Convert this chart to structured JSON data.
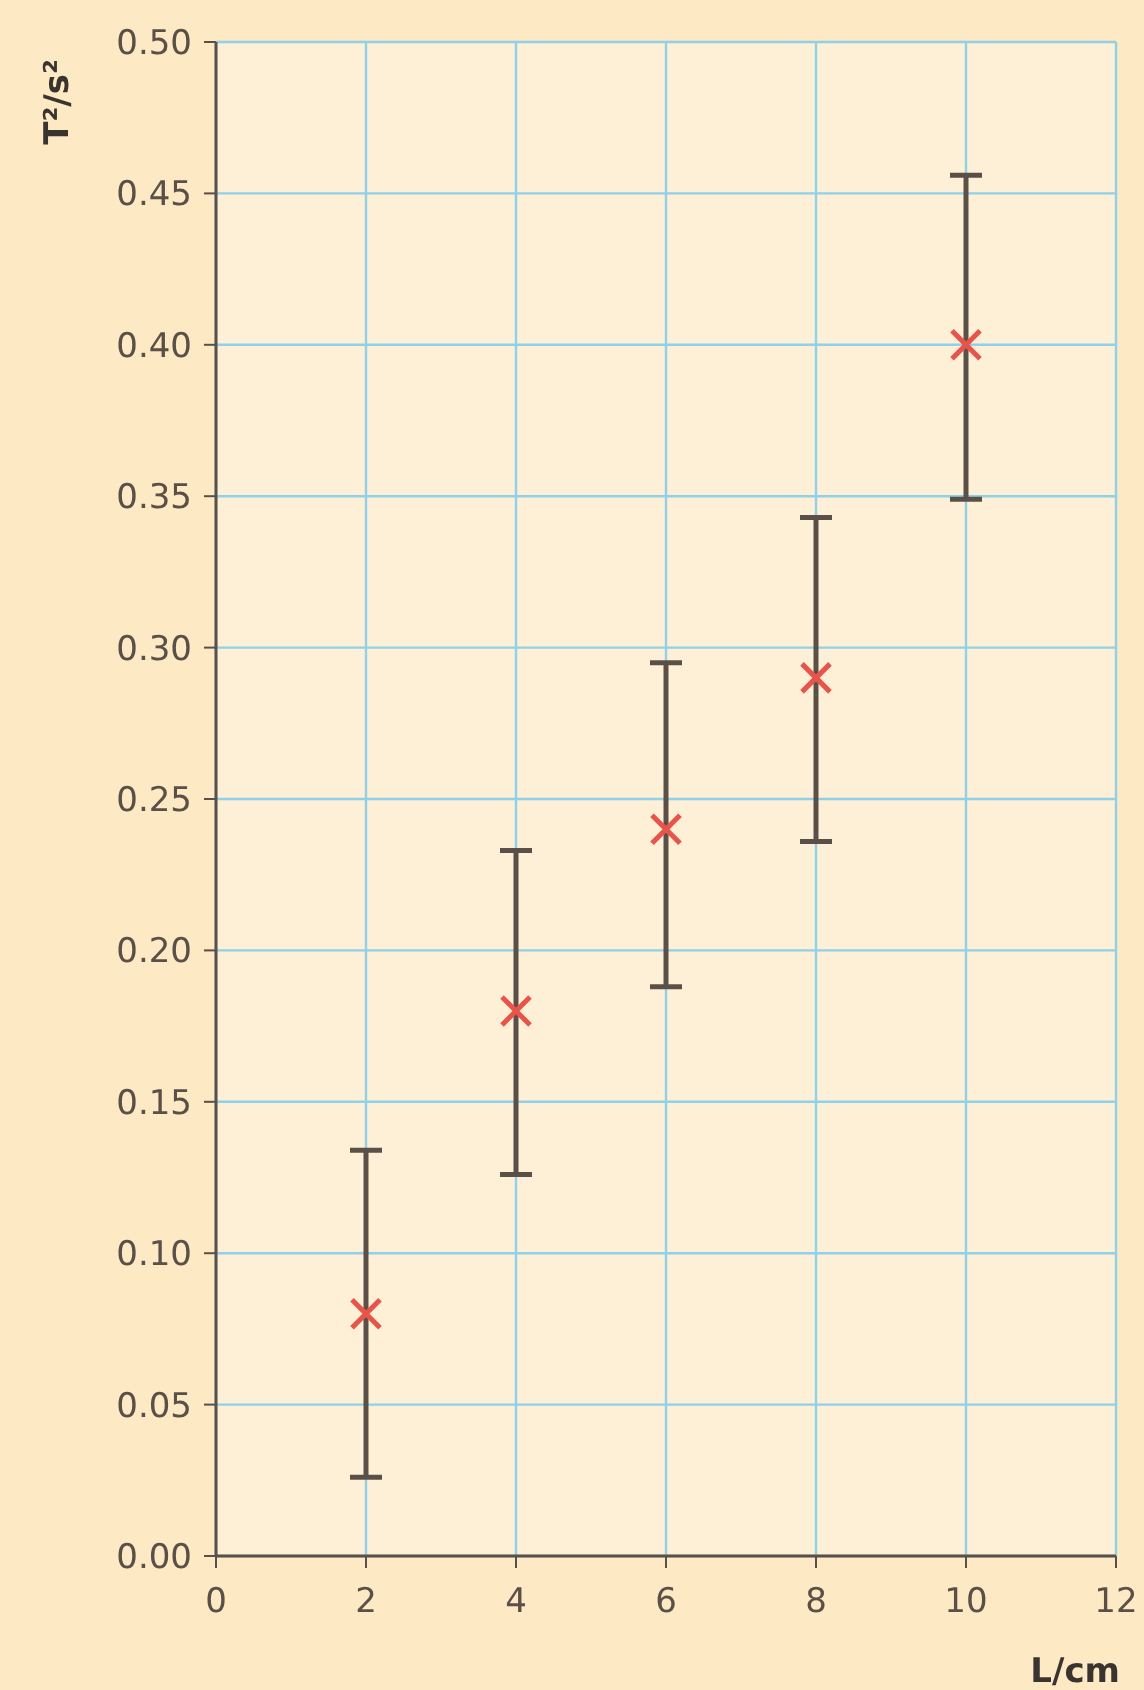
{
  "chart_data": {
    "type": "scatter",
    "xlabel": "L/cm",
    "ylabel": "T²/s²",
    "x": [
      2,
      4,
      6,
      8,
      10
    ],
    "series": [
      {
        "color": "#e8534a",
        "values": [
          0.08,
          0.18,
          0.24,
          0.29,
          0.4
        ],
        "errors": [
          [
            0.026,
            0.134
          ],
          [
            0.126,
            0.233
          ],
          [
            0.188,
            0.295
          ],
          [
            0.236,
            0.343
          ],
          [
            0.349,
            0.456
          ]
        ]
      }
    ],
    "xlim": [
      0,
      12
    ],
    "ylim": [
      0,
      0.5
    ],
    "xticks": [
      0,
      2,
      4,
      6,
      8,
      10,
      12
    ],
    "yticks": [
      {
        "value": 0,
        "label": "0.00"
      },
      {
        "value": 0.05,
        "label": "0.05"
      },
      {
        "value": 0.1,
        "label": "0.10"
      },
      {
        "value": 0.15,
        "label": "0.15"
      },
      {
        "value": 0.2,
        "label": "0.20"
      },
      {
        "value": 0.25,
        "label": "0.25"
      },
      {
        "value": 0.3,
        "label": "0.30"
      },
      {
        "value": 0.35,
        "label": "0.35"
      },
      {
        "value": 0.4,
        "label": "0.40"
      },
      {
        "value": 0.45,
        "label": "0.45"
      },
      {
        "value": 0.5,
        "label": "0.50"
      }
    ],
    "grid": true,
    "marker": "cross"
  }
}
